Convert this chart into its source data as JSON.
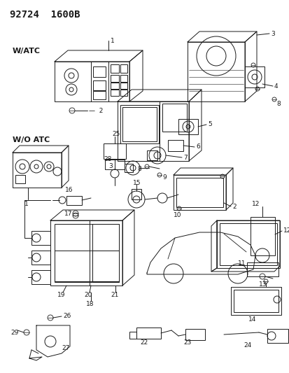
{
  "title": "92724  1600B",
  "bg_color": "#ffffff",
  "line_color": "#1a1a1a",
  "text_color": "#1a1a1a",
  "title_fontsize": 10,
  "label_fontsize": 6.5,
  "fig_width": 4.14,
  "fig_height": 5.33,
  "dpi": 100,
  "watc_label": "W/ATC",
  "woatc_label": "W/O ATC",
  "xlim": [
    0,
    414
  ],
  "ylim": [
    0,
    533
  ]
}
